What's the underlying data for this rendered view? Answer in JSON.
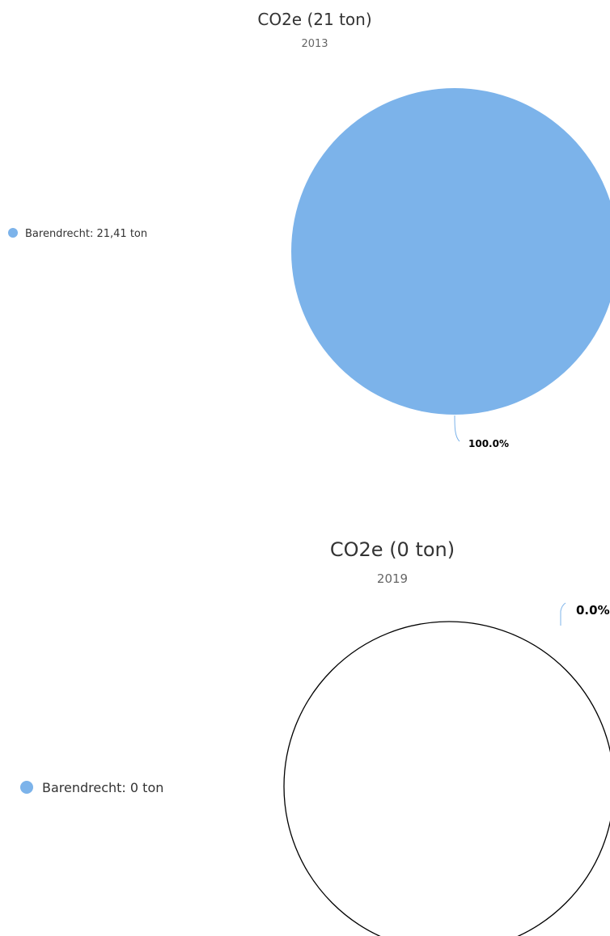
{
  "chart_data": [
    {
      "type": "pie",
      "title": "CO2e (21 ton)",
      "subtitle": "2013",
      "slices": [
        {
          "name": "Barendrecht",
          "value": 21.41,
          "percent": 100.0
        }
      ],
      "legend": [
        {
          "label": "Barendrecht: 21,41 ton",
          "color": "#7cb3ea"
        }
      ],
      "data_labels": [
        "100.0%"
      ],
      "legend_position": "left"
    },
    {
      "type": "pie",
      "title": "CO2e (0 ton)",
      "subtitle": "2019",
      "slices": [
        {
          "name": "Barendrecht",
          "value": 0,
          "percent": 0.0
        }
      ],
      "legend": [
        {
          "label": "Barendrecht: 0 ton",
          "color": "#7cb3ea"
        }
      ],
      "data_labels": [
        "0.0%"
      ],
      "legend_position": "left"
    }
  ],
  "colors": {
    "series": "#7cb3ea",
    "title": "#333333",
    "subtitle": "#666666",
    "outline": "#000000"
  }
}
